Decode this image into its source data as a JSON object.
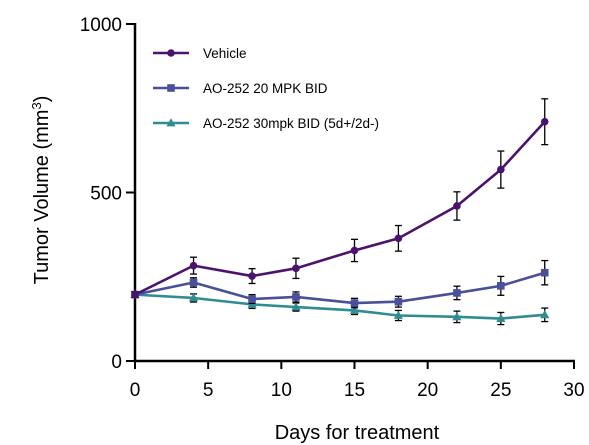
{
  "chart_data": {
    "type": "line",
    "xlabel": "Days for treatment",
    "ylabel": "Tumor Volume (mm",
    "ylabel_superscript": "3",
    "ylabel_suffix": ")",
    "xlim": [
      0,
      30
    ],
    "ylim": [
      0,
      1000
    ],
    "x_ticks": [
      0,
      5,
      10,
      15,
      20,
      25,
      30
    ],
    "y_ticks": [
      0,
      500,
      1000
    ],
    "grid": false,
    "legend_position": "top-left",
    "series": [
      {
        "name": "Vehicle",
        "color": "#4b136e",
        "marker": "circle",
        "x": [
          0,
          4,
          8,
          11,
          15,
          18,
          22,
          25,
          28
        ],
        "y": [
          197,
          283,
          252,
          275,
          328,
          364,
          460,
          568,
          710
        ],
        "err": [
          8,
          25,
          22,
          30,
          33,
          38,
          42,
          55,
          68
        ]
      },
      {
        "name": "AO-252 20 MPK BID",
        "color": "#4a4f9a",
        "marker": "square",
        "x": [
          0,
          4,
          8,
          11,
          15,
          18,
          22,
          25,
          28
        ],
        "y": [
          197,
          233,
          184,
          190,
          172,
          176,
          202,
          223,
          262
        ],
        "err": [
          8,
          14,
          13,
          15,
          14,
          16,
          20,
          28,
          36
        ]
      },
      {
        "name": "AO-252 30mpk BID (5d+/2d-)",
        "color": "#2e8c92",
        "marker": "triangle",
        "x": [
          0,
          4,
          8,
          11,
          15,
          18,
          22,
          25,
          28
        ],
        "y": [
          197,
          187,
          168,
          160,
          150,
          135,
          131,
          126,
          137
        ],
        "err": [
          8,
          12,
          12,
          12,
          12,
          15,
          17,
          18,
          20
        ]
      }
    ]
  }
}
